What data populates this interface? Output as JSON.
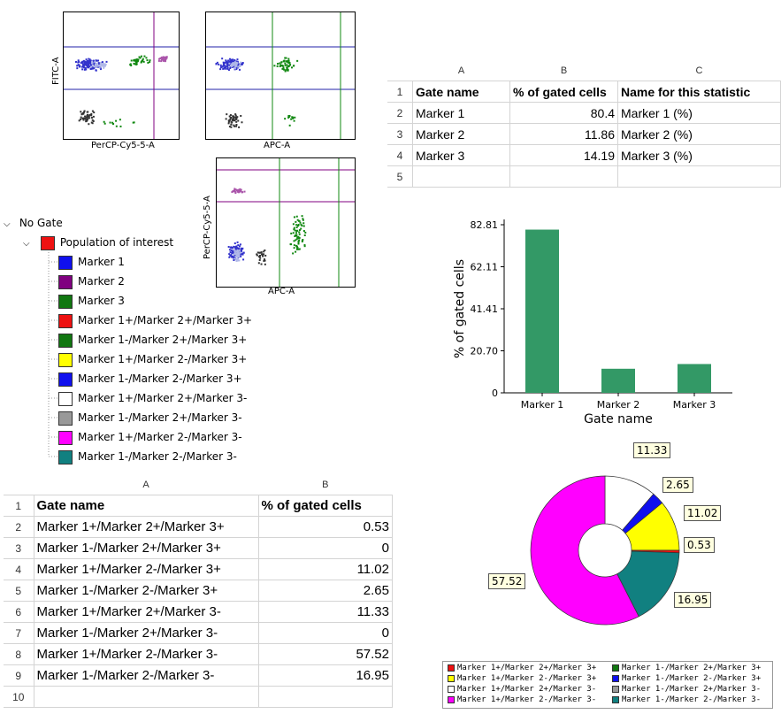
{
  "plots": {
    "plot1": {
      "xlabel": "PerCP-Cy5-5-A",
      "ylabel": "FITC-A"
    },
    "plot2": {
      "xlabel": "APC-A"
    },
    "plot3": {
      "xlabel": "APC-A",
      "ylabel": "PerCP-Cy5-5-A"
    }
  },
  "tree": {
    "root": "No Gate",
    "population": {
      "label": "Population of interest",
      "color": "#ee1111"
    },
    "items": [
      {
        "label": "Marker 1",
        "color": "#1010ee"
      },
      {
        "label": "Marker 2",
        "color": "#800080"
      },
      {
        "label": "Marker 3",
        "color": "#117711"
      },
      {
        "label": "Marker 1+/Marker 2+/Marker 3+",
        "color": "#ee1111"
      },
      {
        "label": "Marker 1-/Marker 2+/Marker 3+",
        "color": "#117711"
      },
      {
        "label": "Marker 1+/Marker 2-/Marker 3+",
        "color": "#ffff00"
      },
      {
        "label": "Marker 1-/Marker 2-/Marker 3+",
        "color": "#1010ee"
      },
      {
        "label": "Marker 1+/Marker 2+/Marker 3-",
        "color": "#ffffff"
      },
      {
        "label": "Marker 1-/Marker 2+/Marker 3-",
        "color": "#999999"
      },
      {
        "label": "Marker 1+/Marker 2-/Marker 3-",
        "color": "#ff00ff"
      },
      {
        "label": "Marker 1-/Marker 2-/Marker 3-",
        "color": "#118080"
      }
    ]
  },
  "table1": {
    "col_letters": [
      "A",
      "B",
      "C"
    ],
    "row_numbers": [
      "1",
      "2",
      "3",
      "4",
      "5"
    ],
    "headers": [
      "Gate name",
      "% of gated cells",
      "Name for this statistic"
    ],
    "rows": [
      [
        "Marker 1",
        "80.4",
        "Marker 1 (%)"
      ],
      [
        "Marker 2",
        "11.86",
        "Marker 2 (%)"
      ],
      [
        "Marker 3",
        "14.19",
        "Marker 3 (%)"
      ]
    ]
  },
  "table2": {
    "col_letters": [
      "A",
      "B"
    ],
    "row_numbers": [
      "1",
      "2",
      "3",
      "4",
      "5",
      "6",
      "7",
      "8",
      "9",
      "10"
    ],
    "headers": [
      "Gate name",
      "% of gated cells"
    ],
    "rows": [
      [
        "Marker 1+/Marker 2+/Marker 3+",
        "0.53"
      ],
      [
        "Marker 1-/Marker 2+/Marker 3+",
        "0"
      ],
      [
        "Marker 1+/Marker 2-/Marker 3+",
        "11.02"
      ],
      [
        "Marker 1-/Marker 2-/Marker 3+",
        "2.65"
      ],
      [
        "Marker 1+/Marker 2+/Marker 3-",
        "11.33"
      ],
      [
        "Marker 1-/Marker 2+/Marker 3-",
        "0"
      ],
      [
        "Marker 1+/Marker 2-/Marker 3-",
        "57.52"
      ],
      [
        "Marker 1-/Marker 2-/Marker 3-",
        "16.95"
      ]
    ]
  },
  "chart_data": [
    {
      "type": "bar",
      "categories": [
        "Marker 1",
        "Marker 2",
        "Marker 3"
      ],
      "values": [
        80.4,
        11.86,
        14.19
      ],
      "xlabel": "Gate name",
      "ylabel": "% of gated cells",
      "yticks": [
        "0",
        "20.70",
        "41.41",
        "62.11",
        "82.81"
      ],
      "ylim": [
        0,
        82.81
      ],
      "color": "#339966"
    },
    {
      "type": "pie",
      "donut": true,
      "slices": [
        {
          "name": "Marker 1+/Marker 2+/Marker 3+",
          "value": 0.53,
          "color": "#ee1111",
          "label": "0.53"
        },
        {
          "name": "Marker 1-/Marker 2+/Marker 3+",
          "value": 0,
          "color": "#117711",
          "label": ""
        },
        {
          "name": "Marker 1+/Marker 2-/Marker 3+",
          "value": 11.02,
          "color": "#ffff00",
          "label": "11.02"
        },
        {
          "name": "Marker 1-/Marker 2-/Marker 3+",
          "value": 2.65,
          "color": "#1010ee",
          "label": "2.65"
        },
        {
          "name": "Marker 1+/Marker 2+/Marker 3-",
          "value": 11.33,
          "color": "#ffffff",
          "label": "11.33"
        },
        {
          "name": "Marker 1-/Marker 2+/Marker 3-",
          "value": 0,
          "color": "#999999",
          "label": ""
        },
        {
          "name": "Marker 1+/Marker 2-/Marker 3-",
          "value": 57.52,
          "color": "#ff00ff",
          "label": "57.52"
        },
        {
          "name": "Marker 1-/Marker 2-/Marker 3-",
          "value": 16.95,
          "color": "#118080",
          "label": "16.95"
        }
      ],
      "legend": [
        "Marker 1+/Marker 2+/Marker 3+",
        "Marker 1-/Marker 2+/Marker 3+",
        "Marker 1+/Marker 2-/Marker 3+",
        "Marker 1-/Marker 2-/Marker 3+",
        "Marker 1+/Marker 2+/Marker 3-",
        "Marker 1-/Marker 2+/Marker 3-",
        "Marker 1+/Marker 2-/Marker 3-",
        "Marker 1-/Marker 2-/Marker 3-"
      ]
    }
  ]
}
